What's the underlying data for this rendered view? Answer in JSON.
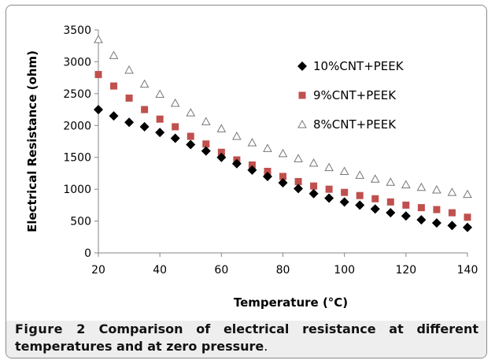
{
  "chart_data": {
    "type": "scatter",
    "xlabel": "Temperature (°C)",
    "ylabel": "Electrical Resistance (ohm)",
    "xlim": [
      20,
      140
    ],
    "ylim": [
      0,
      3500
    ],
    "xticks": [
      "20",
      "40",
      "60",
      "80",
      "100",
      "120",
      "140"
    ],
    "yticks": [
      "0",
      "500",
      "1000",
      "1500",
      "2000",
      "2500",
      "3000",
      "3500"
    ],
    "grid": false,
    "legend": "top-right",
    "x": [
      20,
      25,
      30,
      35,
      40,
      45,
      50,
      55,
      60,
      65,
      70,
      75,
      80,
      85,
      90,
      95,
      100,
      105,
      110,
      115,
      120,
      125,
      130,
      135,
      140
    ],
    "series": [
      {
        "name": "10%CNT+PEEK",
        "marker": "diamond",
        "color": "#000000",
        "values": [
          2250,
          2150,
          2050,
          1980,
          1890,
          1800,
          1700,
          1600,
          1500,
          1400,
          1300,
          1200,
          1100,
          1010,
          930,
          860,
          800,
          750,
          690,
          630,
          580,
          520,
          470,
          430,
          400
        ]
      },
      {
        "name": "9%CNT+PEEK",
        "marker": "square",
        "color": "#c0504d",
        "values": [
          2800,
          2620,
          2430,
          2250,
          2100,
          1980,
          1830,
          1710,
          1580,
          1460,
          1380,
          1280,
          1200,
          1120,
          1050,
          1000,
          950,
          900,
          850,
          800,
          750,
          710,
          680,
          630,
          560
        ]
      },
      {
        "name": "8%CNT+PEEK",
        "marker": "triangle",
        "color": "#777777",
        "values": [
          3350,
          3100,
          2870,
          2650,
          2490,
          2350,
          2200,
          2060,
          1950,
          1830,
          1730,
          1640,
          1560,
          1480,
          1410,
          1340,
          1280,
          1220,
          1160,
          1110,
          1070,
          1030,
          990,
          950,
          920
        ]
      }
    ]
  },
  "caption": {
    "figure_label": "Figure 2",
    "text": "Comparison of electrical resistance at different temperatures and at zero pressure",
    "end": "."
  }
}
